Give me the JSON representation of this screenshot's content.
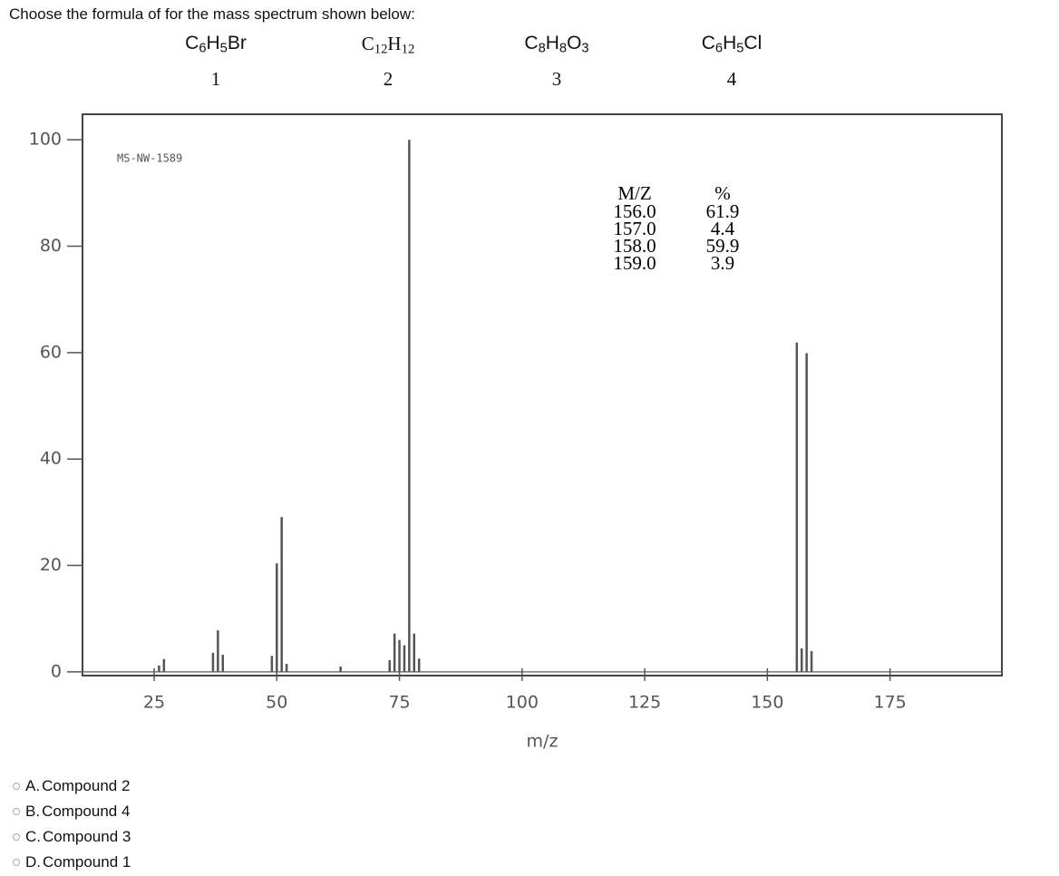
{
  "question": "Choose the formula of for the mass spectrum shown below:",
  "compounds": [
    {
      "formula": "C6H5Br",
      "number": "1"
    },
    {
      "formula": "C12H12",
      "number": "2"
    },
    {
      "formula": "C8H8O3",
      "number": "3"
    },
    {
      "formula": "C6H5Cl",
      "number": "4"
    }
  ],
  "chart_data": {
    "type": "bar",
    "x_label": "m/z",
    "x": [
      26,
      27,
      37,
      38,
      39,
      49,
      50,
      51,
      52,
      63,
      73,
      74,
      75,
      76,
      77,
      78,
      79,
      156,
      157,
      158,
      159
    ],
    "values": [
      1.2,
      2.4,
      3.6,
      7.8,
      3.2,
      3,
      20.4,
      29.1,
      1.5,
      1,
      2.2,
      7.2,
      6,
      5,
      100,
      7.2,
      2.5,
      61.9,
      4.4,
      59.9,
      3.9
    ],
    "color": "#555555",
    "xlim": [
      10.4,
      197.8
    ],
    "ylim": [
      -0.7,
      104.8
    ],
    "xticks": [
      25,
      50,
      75,
      100,
      125,
      150,
      175
    ],
    "yticks": [
      0,
      20,
      40,
      60,
      80,
      100
    ],
    "annotations": {
      "id": "MS-NW-1589",
      "table_header": [
        "M/Z",
        "%"
      ],
      "table_rows": [
        [
          "156.0",
          "61.9"
        ],
        [
          "157.0",
          "4.4"
        ],
        [
          "158.0",
          "59.9"
        ],
        [
          "159.0",
          "3.9"
        ]
      ]
    }
  },
  "options": [
    {
      "letter": "A.",
      "text": "Compound 2"
    },
    {
      "letter": "B.",
      "text": "Compound 4"
    },
    {
      "letter": "C.",
      "text": "Compound 3"
    },
    {
      "letter": "D.",
      "text": "Compound 1"
    }
  ]
}
